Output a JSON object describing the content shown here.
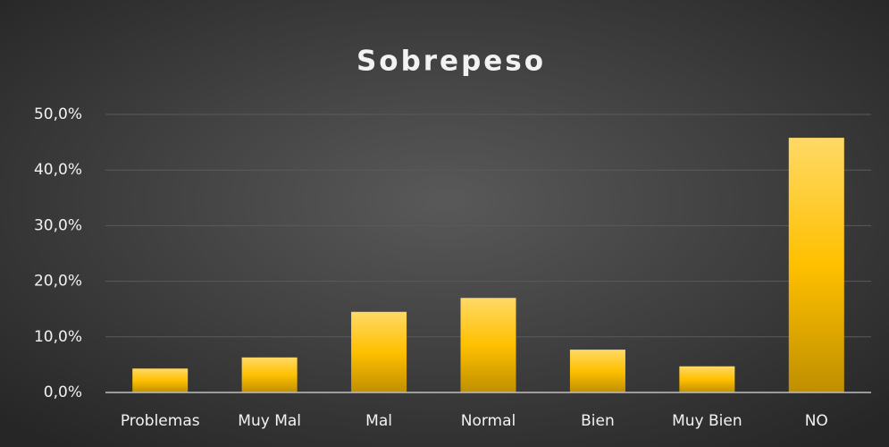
{
  "chart_data": {
    "type": "bar",
    "title": "Sobrepeso",
    "categories": [
      "Problemas",
      "Muy Mal",
      "Mal",
      "Normal",
      "Bien",
      "Muy Bien",
      "NO"
    ],
    "values": [
      4.3,
      6.3,
      14.5,
      17.0,
      7.7,
      4.7,
      45.8
    ],
    "color": "#ffc000",
    "ylim": [
      0,
      50
    ],
    "yticks": [
      {
        "value": 0,
        "label": "0,0%"
      },
      {
        "value": 10,
        "label": "10,0%"
      },
      {
        "value": 20,
        "label": "20,0%"
      },
      {
        "value": 30,
        "label": "30,0%"
      },
      {
        "value": 40,
        "label": "40,0%"
      },
      {
        "value": 50,
        "label": "50,0%"
      }
    ],
    "grid": true
  }
}
